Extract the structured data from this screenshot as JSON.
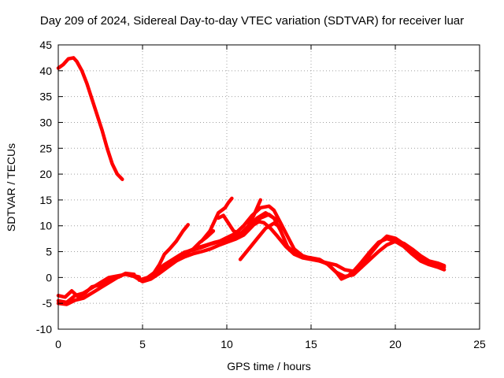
{
  "chart_data": {
    "type": "line",
    "title": "Day 209 of 2024, Sidereal Day-to-day VTEC variation (SDTVAR) for receiver luar",
    "xlabel": "GPS time / hours",
    "ylabel": "SDTVAR / TECUs",
    "xlim": [
      0,
      25
    ],
    "ylim": [
      -10,
      45
    ],
    "xticks": [
      0,
      5,
      10,
      15,
      20,
      25
    ],
    "yticks": [
      -10,
      -5,
      0,
      5,
      10,
      15,
      20,
      25,
      30,
      35,
      40,
      45
    ],
    "grid": true,
    "color": "#ff0000",
    "series": [
      {
        "name": "s1",
        "x": [
          0.0,
          0.3,
          0.6,
          0.9,
          1.1,
          1.4,
          1.7,
          2.0,
          2.3,
          2.6,
          2.9,
          3.2,
          3.5,
          3.8
        ],
        "y": [
          40.5,
          41.2,
          42.3,
          42.5,
          41.8,
          40.0,
          37.5,
          34.5,
          31.5,
          28.5,
          25.0,
          22.0,
          20.0,
          19.0
        ]
      },
      {
        "name": "s2",
        "x": [
          0.0,
          0.5,
          1.0,
          1.5,
          2.0,
          2.5,
          3.0,
          3.5,
          4.0,
          4.5,
          5.0
        ],
        "y": [
          -4.5,
          -4.8,
          -3.5,
          -3.0,
          -2.0,
          -1.0,
          0.0,
          0.3,
          0.6,
          0.2,
          -0.5
        ]
      },
      {
        "name": "s3",
        "x": [
          0.0,
          0.4,
          0.8,
          1.2,
          1.6,
          2.0,
          2.4,
          2.8,
          3.2,
          3.6,
          4.0,
          4.4,
          4.8
        ],
        "y": [
          -3.5,
          -3.8,
          -2.6,
          -3.8,
          -3.0,
          -1.8,
          -1.5,
          -0.8,
          -0.2,
          0.1,
          0.8,
          0.4,
          0.1
        ]
      },
      {
        "name": "s4",
        "x": [
          0.0,
          0.5,
          1.0,
          1.5,
          2.0,
          2.5,
          3.0,
          3.5,
          4.0,
          4.5
        ],
        "y": [
          -5.0,
          -5.2,
          -4.4,
          -4.0,
          -3.0,
          -2.0,
          -1.0,
          0.0,
          0.8,
          0.6
        ]
      },
      {
        "name": "s5",
        "x": [
          4.5,
          5.0,
          5.5,
          6.0,
          6.5,
          7.0,
          7.5,
          8.0,
          8.5,
          9.0,
          9.5,
          10.0,
          10.5,
          11.0,
          11.3,
          11.6,
          11.9,
          12.2,
          12.6,
          13.0,
          13.5,
          14.0,
          14.5,
          15.0,
          15.5,
          16.0,
          16.5,
          17.0,
          17.5,
          18.0,
          18.5,
          19.0,
          19.5,
          20.0,
          20.5,
          21.0,
          21.5,
          22.0,
          22.5,
          22.9
        ],
        "y": [
          0.2,
          -0.8,
          -0.3,
          0.8,
          2.0,
          3.2,
          4.0,
          4.6,
          5.0,
          5.5,
          6.2,
          6.8,
          7.4,
          8.2,
          9.2,
          10.2,
          10.8,
          10.6,
          9.5,
          8.0,
          6.0,
          4.5,
          3.8,
          3.5,
          3.2,
          2.8,
          2.4,
          1.5,
          1.2,
          2.0,
          3.5,
          5.0,
          6.3,
          7.0,
          6.6,
          5.5,
          4.2,
          3.2,
          2.8,
          2.3
        ]
      },
      {
        "name": "s6",
        "x": [
          4.8,
          5.3,
          5.8,
          6.3,
          6.8,
          7.3,
          7.8,
          8.3,
          8.8,
          9.3,
          9.8,
          10.3,
          10.8,
          11.3,
          11.8,
          12.3,
          12.8,
          13.2,
          13.6,
          14.0,
          14.5,
          15.0,
          15.5,
          16.0,
          16.5,
          17.0,
          17.5,
          18.0,
          18.5,
          19.0,
          19.5,
          20.0,
          20.5,
          21.0,
          21.5,
          22.0,
          22.5,
          22.9
        ],
        "y": [
          -0.5,
          0.0,
          1.2,
          2.5,
          3.5,
          4.5,
          5.2,
          5.8,
          6.3,
          6.8,
          7.2,
          7.6,
          8.4,
          10.0,
          11.5,
          12.5,
          11.5,
          9.0,
          6.0,
          4.8,
          4.0,
          3.8,
          3.5,
          2.5,
          1.0,
          0.2,
          0.5,
          2.0,
          4.5,
          6.5,
          8.0,
          7.6,
          6.5,
          5.0,
          3.5,
          3.0,
          2.5,
          2.0
        ]
      },
      {
        "name": "s7",
        "x": [
          5.0,
          5.5,
          6.0,
          6.5,
          7.0,
          7.5,
          8.0,
          8.5,
          9.0,
          9.5,
          10.0,
          10.5,
          11.0,
          11.5,
          12.0,
          12.5,
          12.8,
          13.2,
          13.6,
          14.0,
          14.5,
          15.0,
          15.5,
          16.0,
          16.5,
          16.8,
          17.2,
          17.6,
          18.0,
          18.5,
          19.0,
          19.5,
          20.0,
          20.5,
          21.0,
          21.5,
          22.0,
          22.5,
          22.9
        ],
        "y": [
          -0.6,
          0.3,
          1.5,
          2.8,
          3.9,
          4.9,
          5.3,
          5.8,
          6.4,
          6.9,
          7.7,
          8.5,
          10.0,
          12.0,
          13.5,
          13.8,
          13.0,
          10.5,
          8.0,
          5.5,
          4.2,
          3.7,
          3.2,
          2.6,
          1.0,
          -0.3,
          0.3,
          1.5,
          3.0,
          5.0,
          6.8,
          7.5,
          7.0,
          6.0,
          4.5,
          3.2,
          2.5,
          2.0,
          1.5
        ]
      },
      {
        "name": "s8",
        "x": [
          5.5,
          6.0,
          6.3,
          6.6,
          7.0,
          7.4,
          7.7
        ],
        "y": [
          0.0,
          2.5,
          4.5,
          5.5,
          7.0,
          9.0,
          10.2
        ]
      },
      {
        "name": "s9",
        "x": [
          7.0,
          7.5,
          8.0,
          8.4,
          8.8,
          9.2
        ],
        "y": [
          3.5,
          4.5,
          5.5,
          6.8,
          7.8,
          9.0
        ]
      },
      {
        "name": "s10",
        "x": [
          8.5,
          9.0,
          9.5,
          9.9,
          10.1,
          10.3
        ],
        "y": [
          7.0,
          9.0,
          12.5,
          13.5,
          14.5,
          15.3
        ]
      },
      {
        "name": "s11",
        "x": [
          9.5,
          9.8,
          10.1,
          10.4,
          10.8,
          11.2,
          11.6,
          12.0
        ],
        "y": [
          11.5,
          12.0,
          10.5,
          9.0,
          8.5,
          9.5,
          12.0,
          15.0
        ]
      },
      {
        "name": "s12",
        "x": [
          11.0,
          11.5,
          12.0,
          12.5,
          13.0
        ],
        "y": [
          8.5,
          10.0,
          11.5,
          12.2,
          11.0
        ]
      },
      {
        "name": "s13",
        "x": [
          10.8,
          11.3,
          11.8,
          12.3,
          12.8,
          13.3
        ],
        "y": [
          3.5,
          5.5,
          7.5,
          9.5,
          10.5,
          9.5
        ]
      }
    ]
  }
}
